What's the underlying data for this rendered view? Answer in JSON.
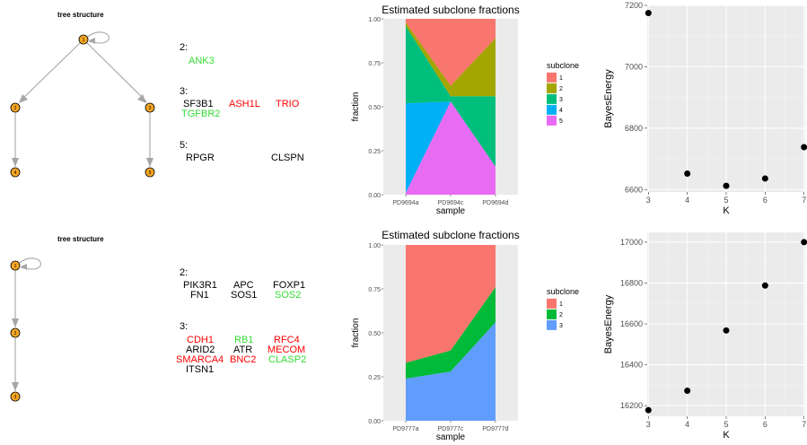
{
  "colors": {
    "node_fill": "#F5A623",
    "edge": "#A6A6A6",
    "panel_bg": "#EBEBEB",
    "grid": "#FFFFFF",
    "driver_red": "#FF0000",
    "driver_green": "#33DD33",
    "subclone5": [
      "#F8766D",
      "#A3A500",
      "#00BF7D",
      "#00B0F6",
      "#E76BF3"
    ],
    "subclone3": [
      "#F8766D",
      "#00BA38",
      "#619CFF"
    ]
  },
  "chart_data": [
    {
      "type": "tree",
      "title": "tree structure",
      "nodes": [
        {
          "id": "1",
          "label": "1",
          "parent": null,
          "self_loop": true
        },
        {
          "id": "2",
          "label": "2",
          "parent": "1"
        },
        {
          "id": "3",
          "label": "3",
          "parent": "1"
        },
        {
          "id": "4",
          "label": "4",
          "parent": "2"
        },
        {
          "id": "5",
          "label": "5",
          "parent": "3"
        }
      ],
      "mutations": [
        {
          "clone": "2:",
          "rows": [
            [
              {
                "gene": "ANK3",
                "color": "green"
              }
            ]
          ]
        },
        {
          "clone": "3:",
          "rows": [
            [
              {
                "gene": "SF3B1",
                "color": "black"
              },
              {
                "gene": "ASH1L",
                "color": "red"
              },
              {
                "gene": "TRIO",
                "color": "red"
              }
            ],
            [
              {
                "gene": "TGFBR2",
                "color": "green"
              }
            ]
          ]
        },
        {
          "clone": "5:",
          "rows": [
            [
              {
                "gene": "RPGR",
                "color": "black"
              },
              {
                "gene": "",
                "color": "black"
              },
              {
                "gene": "CLSPN",
                "color": "black"
              }
            ]
          ]
        }
      ]
    },
    {
      "type": "area",
      "title": "Estimated subclone fractions",
      "xlabel": "sample",
      "ylabel": "fraction",
      "categories": [
        "PD9694a",
        "PD9694c",
        "PD9694d"
      ],
      "ylim": [
        0,
        1
      ],
      "yticks": [
        "0.00",
        "0.25",
        "0.50",
        "0.75",
        "1.00"
      ],
      "legend_title": "subclone",
      "stack_order_bottom_to_top": [
        "5",
        "4",
        "3",
        "2",
        "1"
      ],
      "series": [
        {
          "name": "1",
          "values": [
            0.02,
            0.38,
            0.11
          ]
        },
        {
          "name": "2",
          "values": [
            0.02,
            0.06,
            0.33
          ]
        },
        {
          "name": "3",
          "values": [
            0.44,
            0.03,
            0.4
          ]
        },
        {
          "name": "4",
          "values": [
            0.51,
            0.0,
            0.0
          ]
        },
        {
          "name": "5",
          "values": [
            0.01,
            0.53,
            0.16
          ]
        }
      ],
      "grid": true,
      "legend_position": "right"
    },
    {
      "type": "scatter",
      "xlabel": "K",
      "ylabel": "BayesEnergy",
      "x": [
        3,
        4,
        5,
        6,
        7
      ],
      "y": [
        7175,
        6652,
        6612,
        6636,
        6738
      ],
      "xlim": [
        2.97,
        7.03
      ],
      "ylim": [
        6592,
        7200
      ],
      "xticks": [
        3,
        4,
        5,
        6,
        7
      ],
      "yticks": [
        6600,
        6800,
        7000,
        7200
      ],
      "grid": true
    },
    {
      "type": "tree",
      "title": "tree structure",
      "nodes": [
        {
          "id": "1",
          "label": "1",
          "parent": null,
          "self_loop": true
        },
        {
          "id": "2",
          "label": "2",
          "parent": "1"
        },
        {
          "id": "3",
          "label": "3",
          "parent": "2"
        }
      ],
      "mutations": [
        {
          "clone": "2:",
          "rows": [
            [
              {
                "gene": "PIK3R1",
                "color": "black"
              },
              {
                "gene": "APC",
                "color": "black"
              },
              {
                "gene": "FOXP1",
                "color": "black"
              }
            ],
            [
              {
                "gene": "FN1",
                "color": "black"
              },
              {
                "gene": "SOS1",
                "color": "black"
              },
              {
                "gene": "SOS2",
                "color": "green"
              }
            ]
          ]
        },
        {
          "clone": "3:",
          "rows": [
            [
              {
                "gene": "CDH1",
                "color": "red"
              },
              {
                "gene": "RB1",
                "color": "green"
              },
              {
                "gene": "RFC4",
                "color": "red"
              }
            ],
            [
              {
                "gene": "ARID2",
                "color": "black"
              },
              {
                "gene": "ATR",
                "color": "black"
              },
              {
                "gene": "MECOM",
                "color": "red"
              }
            ],
            [
              {
                "gene": "SMARCA4",
                "color": "red"
              },
              {
                "gene": "BNC2",
                "color": "red"
              },
              {
                "gene": "CLASP2",
                "color": "green"
              }
            ],
            [
              {
                "gene": "ITSN1",
                "color": "black"
              }
            ]
          ]
        }
      ]
    },
    {
      "type": "area",
      "title": "Estimated subclone fractions",
      "xlabel": "sample",
      "ylabel": "fraction",
      "categories": [
        "PD9777a",
        "PD9777c",
        "PD9777d"
      ],
      "ylim": [
        0,
        1
      ],
      "yticks": [
        "0.00",
        "0.25",
        "0.50",
        "0.75",
        "1.00"
      ],
      "legend_title": "subclone",
      "stack_order_bottom_to_top": [
        "3",
        "2",
        "1"
      ],
      "series": [
        {
          "name": "1",
          "values": [
            0.67,
            0.6,
            0.24
          ]
        },
        {
          "name": "2",
          "values": [
            0.09,
            0.12,
            0.2
          ]
        },
        {
          "name": "3",
          "values": [
            0.24,
            0.28,
            0.56
          ]
        }
      ],
      "grid": true,
      "legend_position": "right"
    },
    {
      "type": "scatter",
      "xlabel": "K",
      "ylabel": "BayesEnergy",
      "x": [
        3,
        4,
        5,
        6,
        7
      ],
      "y": [
        16178,
        16273,
        16568,
        16788,
        17000
      ],
      "xlim": [
        2.97,
        7.03
      ],
      "ylim": [
        16148,
        17048
      ],
      "xticks": [
        3,
        4,
        5,
        6,
        7
      ],
      "yticks": [
        16200,
        16400,
        16600,
        16800,
        17000
      ],
      "grid": true
    }
  ]
}
